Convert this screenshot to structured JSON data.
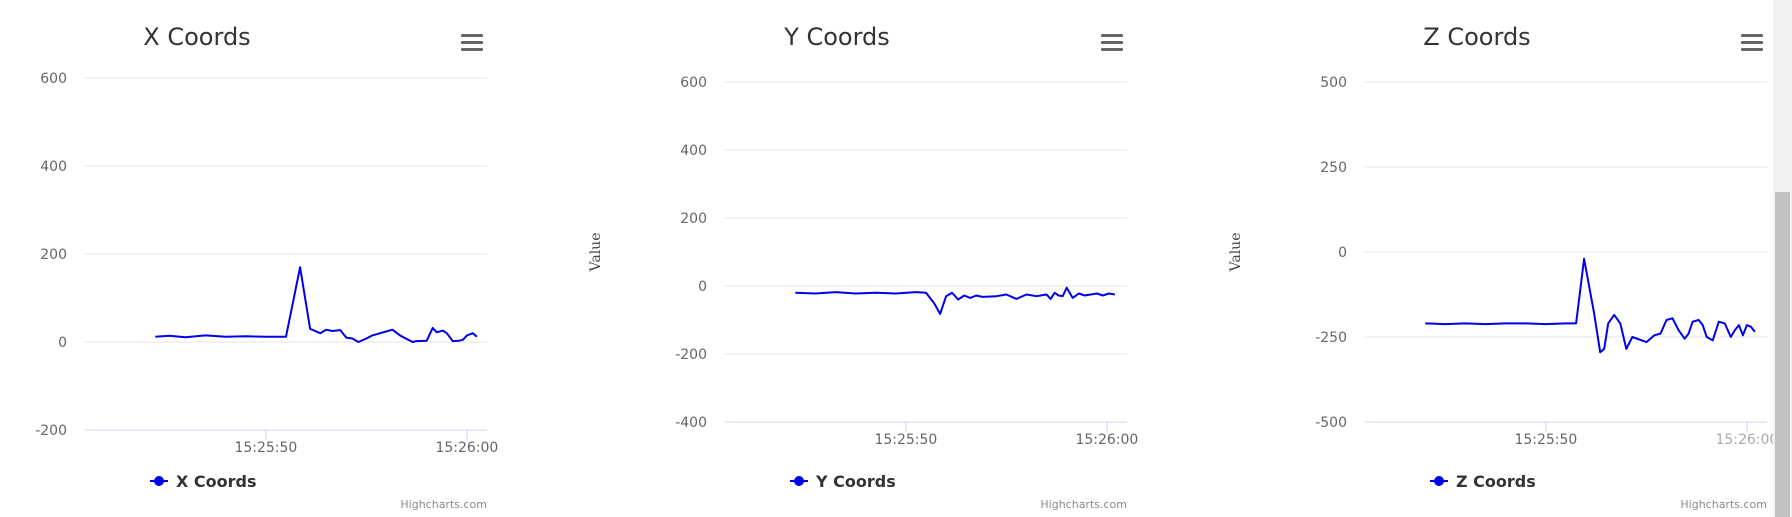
{
  "colors": {
    "series": "#0000ee",
    "grid": "#e6e6e6",
    "axis_line": "#ccd6eb",
    "tick_text": "#666666"
  },
  "icons": {
    "menu": "hamburger-menu-icon",
    "legend_marker": "circle-line-marker-icon"
  },
  "chart_data": [
    {
      "type": "line",
      "title": "X Coords",
      "xlabel": "",
      "ylabel": "",
      "x_ticks": [
        "15:25:50",
        "15:26:00"
      ],
      "y_ticks": [
        600,
        400,
        200,
        0,
        -200
      ],
      "ylim": [
        -200,
        600
      ],
      "xlim_seconds": [
        41,
        61
      ],
      "grid": true,
      "legend": {
        "position": "bottom-left",
        "entries": [
          "X Coords"
        ]
      },
      "credits": "Highcharts.com",
      "series": [
        {
          "name": "X Coords",
          "x_seconds": [
            44.5,
            45.2,
            46.0,
            47.0,
            48.0,
            49.0,
            50.0,
            51.0,
            51.7,
            52.2,
            52.7,
            53.0,
            53.3,
            53.7,
            54.0,
            54.3,
            54.6,
            55.0,
            55.3,
            56.3,
            56.7,
            57.3,
            57.5,
            58.0,
            58.3,
            58.5,
            58.8,
            59.0,
            59.3,
            59.6,
            59.8,
            60.0,
            60.3,
            60.5
          ],
          "values": [
            12,
            14,
            11,
            15,
            12,
            13,
            12,
            12,
            170,
            30,
            20,
            28,
            25,
            27,
            10,
            8,
            0,
            8,
            15,
            28,
            14,
            0,
            2,
            3,
            32,
            22,
            26,
            20,
            2,
            3,
            5,
            15,
            20,
            12
          ]
        }
      ]
    },
    {
      "type": "line",
      "title": "Y Coords",
      "xlabel": "",
      "ylabel": "Value",
      "x_ticks": [
        "15:25:50",
        "15:26:00"
      ],
      "y_ticks": [
        600,
        400,
        200,
        0,
        -200,
        -400
      ],
      "ylim": [
        -400,
        600
      ],
      "xlim_seconds": [
        41,
        61
      ],
      "grid": true,
      "legend": {
        "position": "bottom-left",
        "entries": [
          "Y Coords"
        ]
      },
      "credits": "Highcharts.com",
      "series": [
        {
          "name": "Y Coords",
          "x_seconds": [
            44.5,
            45.5,
            46.5,
            47.5,
            48.5,
            49.5,
            50.5,
            51.0,
            51.4,
            51.7,
            52.0,
            52.3,
            52.6,
            52.9,
            53.2,
            53.5,
            53.8,
            54.5,
            55.0,
            55.5,
            56.0,
            56.5,
            57.0,
            57.2,
            57.4,
            57.6,
            57.8,
            58.0,
            58.3,
            58.6,
            58.9,
            59.2,
            59.5,
            59.8,
            60.1,
            60.4
          ],
          "values": [
            -20,
            -22,
            -18,
            -22,
            -20,
            -22,
            -18,
            -20,
            -50,
            -82,
            -30,
            -20,
            -40,
            -28,
            -35,
            -28,
            -32,
            -30,
            -25,
            -38,
            -25,
            -30,
            -25,
            -38,
            -20,
            -28,
            -30,
            -5,
            -35,
            -22,
            -28,
            -25,
            -22,
            -28,
            -22,
            -25
          ]
        }
      ]
    },
    {
      "type": "line",
      "title": "Z Coords",
      "xlabel": "",
      "ylabel": "Value",
      "x_ticks": [
        "15:25:50",
        "15:26:00"
      ],
      "y_ticks": [
        500,
        250,
        0,
        -250,
        -500
      ],
      "ylim": [
        -500,
        500
      ],
      "xlim_seconds": [
        41,
        61
      ],
      "grid": true,
      "legend": {
        "position": "bottom-left",
        "entries": [
          "Z Coords"
        ]
      },
      "credits": "Highcharts.com",
      "series": [
        {
          "name": "Z Coords",
          "x_seconds": [
            44.0,
            45.0,
            46.0,
            47.0,
            48.0,
            49.0,
            50.0,
            51.0,
            51.5,
            51.9,
            52.4,
            52.7,
            52.9,
            53.1,
            53.4,
            53.7,
            54.0,
            54.3,
            55.0,
            55.4,
            55.7,
            56.0,
            56.3,
            56.6,
            56.9,
            57.1,
            57.3,
            57.6,
            57.8,
            58.0,
            58.3,
            58.6,
            58.9,
            59.2,
            59.4,
            59.6,
            59.8,
            60.0,
            60.2,
            60.4
          ],
          "values": [
            -210,
            -212,
            -210,
            -212,
            -210,
            -210,
            -212,
            -210,
            -210,
            -20,
            -180,
            -295,
            -285,
            -210,
            -185,
            -210,
            -285,
            -250,
            -265,
            -245,
            -240,
            -200,
            -195,
            -230,
            -255,
            -240,
            -205,
            -200,
            -215,
            -250,
            -260,
            -205,
            -210,
            -250,
            -230,
            -215,
            -245,
            -215,
            -220,
            -235
          ]
        }
      ]
    }
  ]
}
